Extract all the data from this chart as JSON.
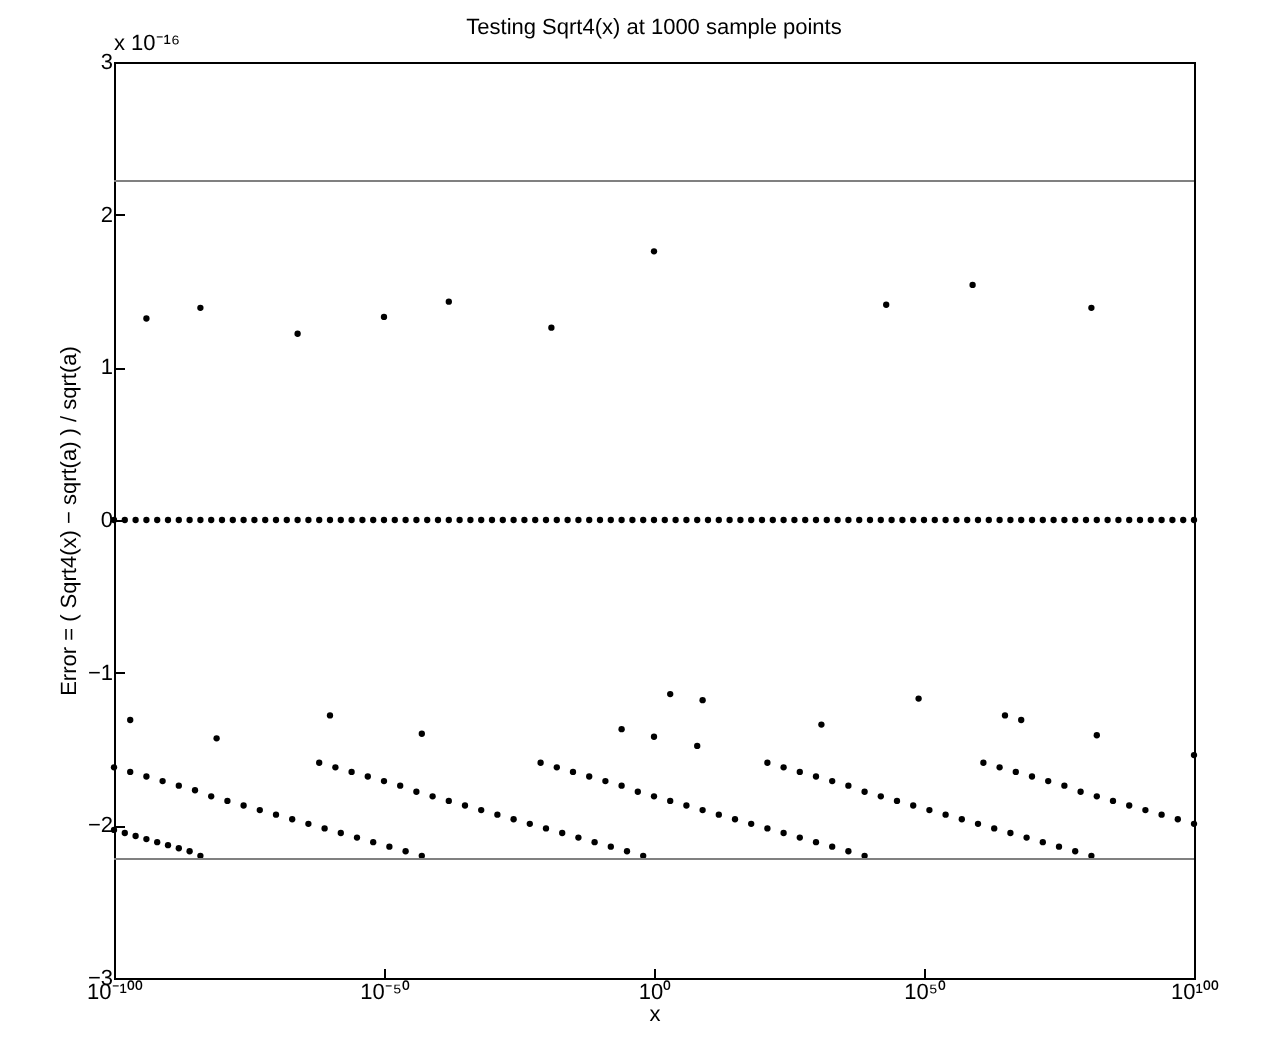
{
  "chart_data": {
    "type": "scatter",
    "title": "Testing  Sqrt4(x)  at 1000 sample points",
    "xlabel": "x",
    "ylabel": "Error =  ( Sqrt4(x) − sqrt(a) ) / sqrt(a)",
    "annotations": [
      "x 10⁻¹⁶"
    ],
    "log": "x",
    "marker": "circle",
    "xlim": [
      1e-100,
      1e+100
    ],
    "xticks": [
      {
        "value": 1e-100,
        "label": "10⁻¹⁰⁰"
      },
      {
        "value": 1e-50,
        "label": "10⁻⁵⁰"
      },
      {
        "value": 1,
        "label": "10⁰"
      },
      {
        "value": 1e+50,
        "label": "10⁵⁰"
      },
      {
        "value": 1e+100,
        "label": "10¹⁰⁰"
      }
    ],
    "ylim": [
      -3,
      3
    ],
    "yticks": [
      -3,
      -2,
      -1,
      0,
      1,
      2,
      3
    ],
    "ref_lines": [
      {
        "axis": "y",
        "value": 2.22,
        "color": "#808080"
      },
      {
        "axis": "y",
        "value": -2.22,
        "color": "#808080"
      }
    ],
    "series": [
      {
        "color": "#000000",
        "x": [
          1e-100,
          1e-98,
          1e-96,
          1e-94,
          1e-92,
          1e-90,
          1e-88,
          1e-86,
          1e-84,
          1e-82,
          1e-80,
          1e-78,
          1e-76,
          1e-74,
          1e-72,
          1e-70,
          1e-68,
          1e-66,
          1e-64,
          1e-62,
          1e-60,
          1e-58,
          1e-56,
          1e-54,
          1e-52,
          1e-50,
          1e-48,
          1e-46,
          1e-44,
          1e-42,
          1e-40,
          1e-38,
          1e-36,
          1e-34,
          1e-32,
          1e-30,
          1e-28,
          1e-26,
          1e-24,
          1e-22,
          1e-20,
          1e-18,
          1e-16,
          1e-14,
          1e-12,
          1e-10,
          1e-08,
          1e-06,
          0.0001,
          0.01,
          1,
          100.0,
          10000.0,
          1000000.0,
          100000000.0,
          10000000000.0,
          1000000000000.0,
          100000000000000.0,
          1e+16,
          1e+18,
          1e+20,
          1e+22,
          1e+24,
          1e+26,
          1e+28,
          1e+30,
          1e+32,
          1e+34,
          1e+36,
          1e+38,
          1e+40,
          1e+42,
          1e+44,
          1e+46,
          1e+48,
          1e+50,
          1e+52,
          1e+54,
          1e+56,
          1e+58,
          1e+60,
          1e+62,
          1e+64,
          1e+66,
          1e+68,
          1e+70,
          1e+72,
          1e+74,
          1e+76,
          1e+78,
          1e+80,
          1e+82,
          1e+84,
          1e+86,
          1e+88,
          1e+90,
          1e+92,
          1e+94,
          1e+96,
          1e+98,
          1e+100
        ],
        "values": [
          0,
          0,
          0,
          0,
          0,
          0,
          0,
          0,
          0,
          0,
          0,
          0,
          0,
          0,
          0,
          0,
          0,
          0,
          0,
          0,
          0,
          0,
          0,
          0,
          0,
          0,
          0,
          0,
          0,
          0,
          0,
          0,
          0,
          0,
          0,
          0,
          0,
          0,
          0,
          0,
          0,
          0,
          0,
          0,
          0,
          0,
          0,
          0,
          0,
          0,
          0,
          0,
          0,
          0,
          0,
          0,
          0,
          0,
          0,
          0,
          0,
          0,
          0,
          0,
          0,
          0,
          0,
          0,
          0,
          0,
          0,
          0,
          0,
          0,
          0,
          0,
          0,
          0,
          0,
          0,
          0,
          0,
          0,
          0,
          0,
          0,
          0,
          0,
          0,
          0,
          0,
          0,
          0,
          0,
          0,
          0,
          0,
          0,
          0,
          0,
          0
        ]
      },
      {
        "color": "#000000",
        "x": [
          1e-94,
          1e-84,
          1e-66,
          1e-50,
          1e-38,
          1e-19,
          1,
          1e+43,
          1e+59,
          1e+81
        ],
        "values": [
          1.32,
          1.39,
          1.22,
          1.33,
          1.43,
          1.26,
          1.76,
          1.41,
          1.54,
          1.39
        ]
      },
      {
        "color": "#000000",
        "x": [
          1e-97,
          1e-81,
          1e-60,
          1e-43,
          1e-06,
          1,
          1000.0,
          1000000000.0,
          100000000.0,
          1e+31,
          1e+49,
          1e+65,
          1e+68,
          1e+82,
          1e+100
        ],
        "values": [
          -1.31,
          -1.43,
          -1.28,
          -1.4,
          -1.37,
          -1.42,
          -1.14,
          -1.18,
          -1.48,
          -1.34,
          -1.17,
          -1.28,
          -1.31,
          -1.41,
          -1.54
        ]
      },
      {
        "color": "#000000",
        "x": [
          1e-100,
          1e-98,
          1e-96,
          1e-94,
          1e-92,
          1e-90,
          1e-88,
          1e-86,
          1e-84
        ],
        "values": [
          -2.03,
          -2.05,
          -2.07,
          -2.09,
          -2.11,
          -2.13,
          -2.15,
          -2.17,
          -2.2
        ]
      },
      {
        "color": "#000000",
        "x": [
          1e-100,
          1e-97,
          1e-94,
          1e-91,
          1e-88,
          1e-85,
          1e-82,
          1e-79,
          1e-76,
          1e-73,
          1e-70,
          1e-67,
          1e-64,
          1e-61,
          1e-58,
          1e-55,
          1e-52,
          1e-49,
          1e-46,
          1e-43
        ],
        "values": [
          -1.62,
          -1.65,
          -1.68,
          -1.71,
          -1.74,
          -1.77,
          -1.81,
          -1.84,
          -1.87,
          -1.9,
          -1.93,
          -1.96,
          -1.99,
          -2.02,
          -2.05,
          -2.08,
          -2.11,
          -2.14,
          -2.17,
          -2.2
        ]
      },
      {
        "color": "#000000",
        "x": [
          1e-62,
          1e-59,
          1e-56,
          1e-53,
          1e-50,
          1e-47,
          1e-44,
          1e-41,
          1e-38,
          1e-35,
          1e-32,
          1e-29,
          1e-26,
          1e-23,
          1e-20,
          1e-17,
          1e-14,
          1e-11,
          1e-08,
          1e-05,
          0.01
        ],
        "values": [
          -1.59,
          -1.62,
          -1.65,
          -1.68,
          -1.71,
          -1.74,
          -1.78,
          -1.81,
          -1.84,
          -1.87,
          -1.9,
          -1.93,
          -1.96,
          -1.99,
          -2.02,
          -2.05,
          -2.08,
          -2.11,
          -2.14,
          -2.17,
          -2.2
        ]
      },
      {
        "color": "#000000",
        "x": [
          1e-21,
          1e-18,
          1e-15,
          1e-12,
          1e-09,
          1e-06,
          0.001,
          1,
          1000.0,
          1000000.0,
          1000000000.0,
          1000000000000.0,
          1000000000000000.0,
          1e+18,
          1e+21,
          1e+24,
          1e+27,
          1e+30,
          1e+33,
          1e+36,
          1e+39
        ],
        "values": [
          -1.59,
          -1.62,
          -1.65,
          -1.68,
          -1.71,
          -1.74,
          -1.78,
          -1.81,
          -1.84,
          -1.87,
          -1.9,
          -1.93,
          -1.96,
          -1.99,
          -2.02,
          -2.05,
          -2.08,
          -2.11,
          -2.14,
          -2.17,
          -2.2
        ]
      },
      {
        "color": "#000000",
        "x": [
          1e+21,
          1e+24,
          1e+27,
          1e+30,
          1e+33,
          1e+36,
          1e+39,
          1e+42,
          1e+45,
          1e+48,
          1e+51,
          1e+54,
          1e+57,
          1e+60,
          1e+63,
          1e+66,
          1e+69,
          1e+72,
          1e+75,
          1e+78,
          1e+81
        ],
        "values": [
          -1.59,
          -1.62,
          -1.65,
          -1.68,
          -1.71,
          -1.74,
          -1.78,
          -1.81,
          -1.84,
          -1.87,
          -1.9,
          -1.93,
          -1.96,
          -1.99,
          -2.02,
          -2.05,
          -2.08,
          -2.11,
          -2.14,
          -2.17,
          -2.2
        ]
      },
      {
        "color": "#000000",
        "x": [
          1e+61,
          1e+64,
          1e+67,
          1e+70,
          1e+73,
          1e+76,
          1e+79,
          1e+82,
          1e+85,
          1e+88,
          1e+91,
          1e+94,
          1e+97,
          1e+100
        ],
        "values": [
          -1.59,
          -1.62,
          -1.65,
          -1.68,
          -1.71,
          -1.74,
          -1.78,
          -1.81,
          -1.84,
          -1.87,
          -1.9,
          -1.93,
          -1.96,
          -1.99
        ]
      }
    ]
  }
}
